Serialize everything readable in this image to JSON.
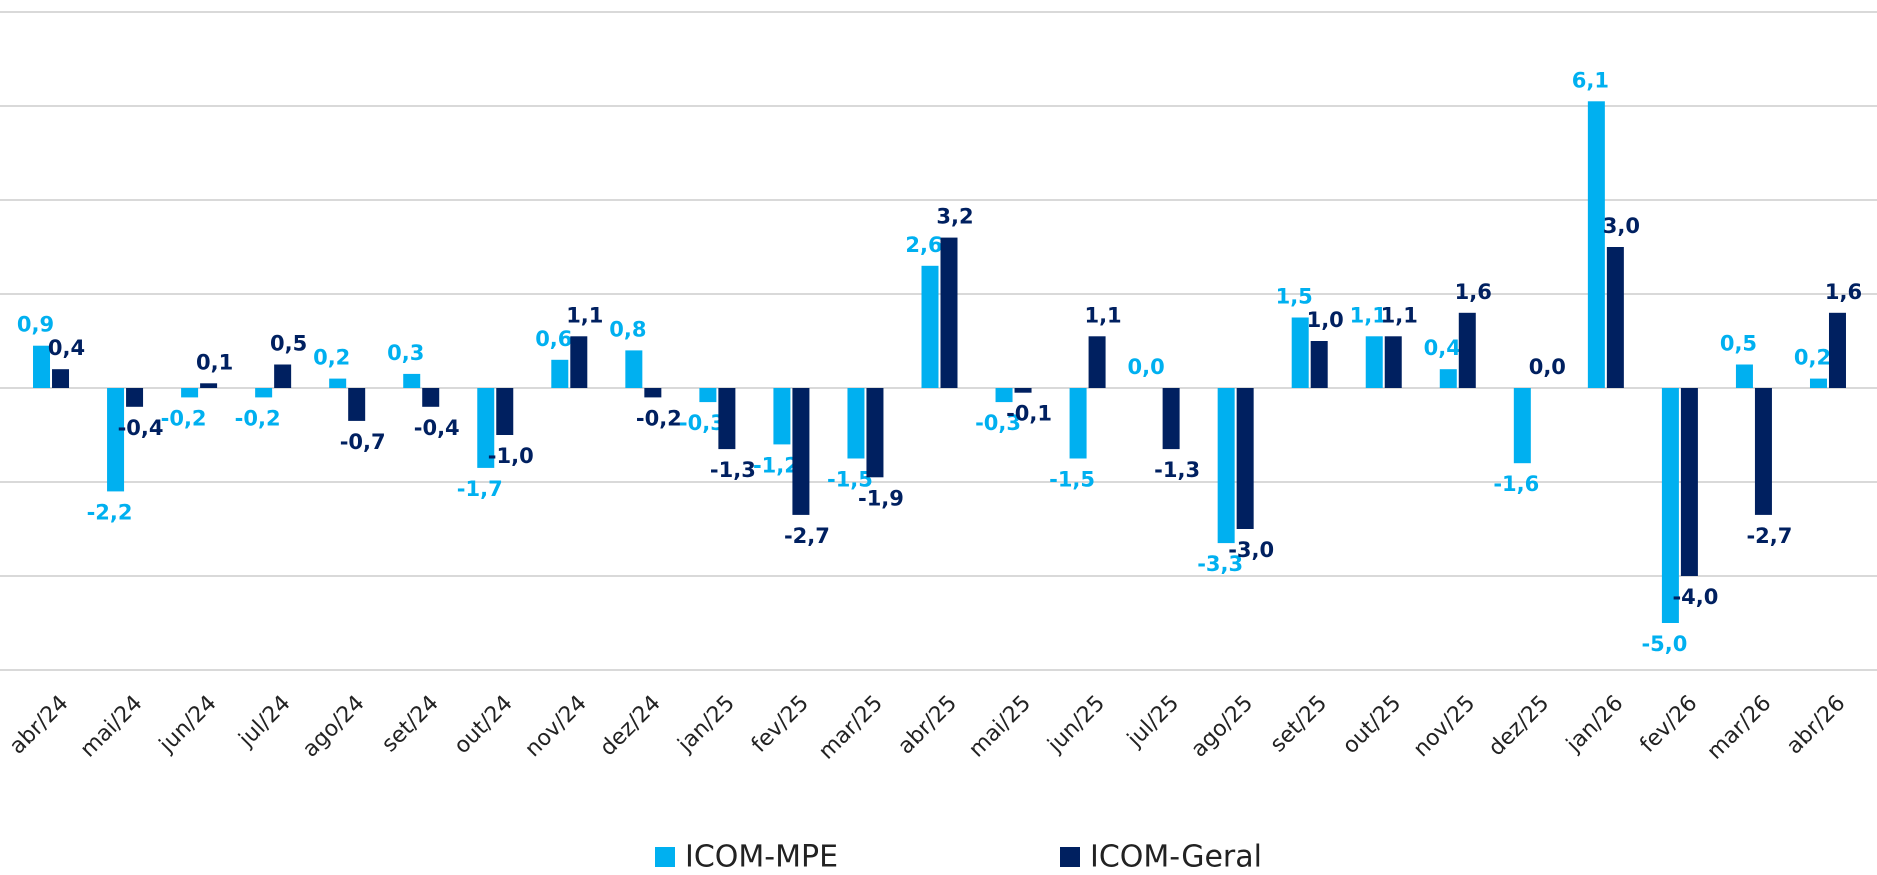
{
  "chart_data": {
    "type": "bar",
    "categories": [
      "abr/24",
      "mai/24",
      "jun/24",
      "jul/24",
      "ago/24",
      "set/24",
      "out/24",
      "nov/24",
      "dez/24",
      "jan/25",
      "fev/25",
      "mar/25",
      "abr/25",
      "mai/25",
      "jun/25",
      "jul/25",
      "ago/25",
      "set/25",
      "out/25",
      "nov/25",
      "dez/25",
      "jan/26",
      "fev/26",
      "mar/26",
      "abr/26"
    ],
    "series": [
      {
        "name": "ICOM-MPE",
        "color": "#00b0f0",
        "values": [
          0.9,
          -2.2,
          -0.2,
          -0.2,
          0.2,
          0.3,
          -1.7,
          0.6,
          0.8,
          -0.3,
          -1.2,
          -1.5,
          2.6,
          -0.3,
          -1.5,
          0.0,
          -3.3,
          1.5,
          1.1,
          0.4,
          -1.6,
          6.1,
          -5.0,
          0.5,
          0.2
        ],
        "value_labels": [
          "0,9",
          "-2,2",
          "-0,2",
          "-0,2",
          "0,2",
          "0,3",
          "-1,7",
          "0,6",
          "0,8",
          "-0,3",
          "-1,2",
          "-1,5",
          "2,6",
          "-0,3",
          "-1,5",
          "0,0",
          "-3,3",
          "1,5",
          "1,1",
          "0,4",
          "-1,6",
          "6,1",
          "-5,0",
          "0,5",
          "0,2"
        ]
      },
      {
        "name": "ICOM-Geral",
        "color": "#002060",
        "values": [
          0.4,
          -0.4,
          0.1,
          0.5,
          -0.7,
          -0.4,
          -1.0,
          1.1,
          -0.2,
          -1.3,
          -2.7,
          -1.9,
          3.2,
          -0.1,
          1.1,
          -1.3,
          -3.0,
          1.0,
          1.1,
          1.6,
          0.0,
          3.0,
          -4.0,
          -2.7,
          1.6
        ],
        "value_labels": [
          "0,4",
          "-0,4",
          "0,1",
          "0,5",
          "-0,7",
          "-0,4",
          "-1,0",
          "1,1",
          "-0,2",
          "-1,3",
          "-2,7",
          "-1,9",
          "3,2",
          "-0,1",
          "1,1",
          "-1,3",
          "-3,0",
          "1,0",
          "1,1",
          "1,6",
          "0,0",
          "3,0",
          "-4,0",
          "-2,7",
          "1,6"
        ]
      }
    ],
    "ylim": [
      -6,
      8
    ],
    "yticks": [
      -6,
      -4,
      -2,
      0,
      2,
      4,
      6,
      8
    ],
    "grid": true
  }
}
